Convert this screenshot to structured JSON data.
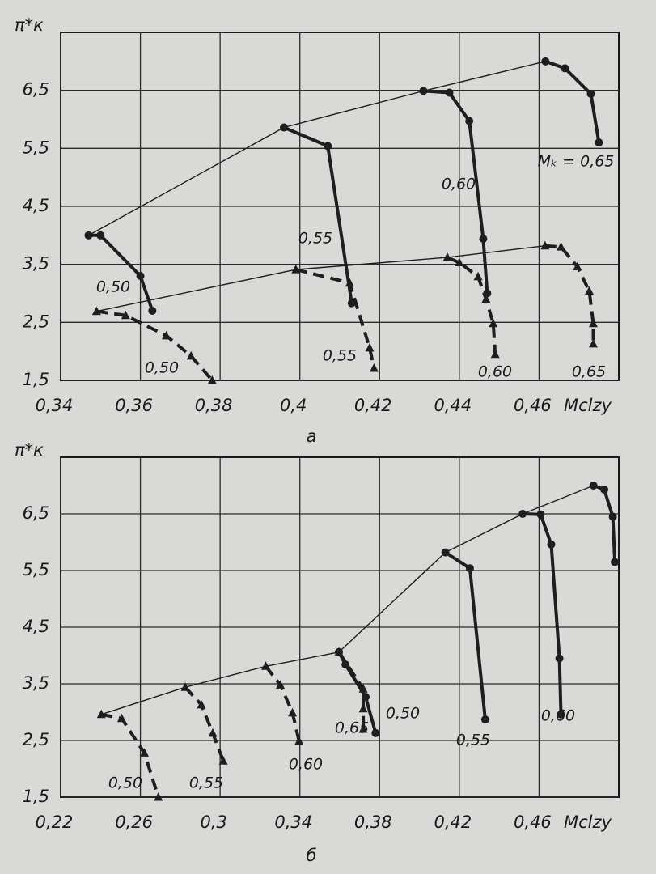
{
  "chart_data": [
    {
      "type": "line",
      "caption": "a",
      "y_label": "π*к",
      "x_label": "Mclzy",
      "color": "#1e1e1e",
      "grid": true,
      "xlim": [
        0.34,
        0.48
      ],
      "ylim": [
        1.5,
        7.5
      ],
      "xticks": [
        {
          "value": 0.34,
          "label": "0,34"
        },
        {
          "value": 0.36,
          "label": "0,36"
        },
        {
          "value": 0.38,
          "label": "0,38"
        },
        {
          "value": 0.4,
          "label": "0,4"
        },
        {
          "value": 0.42,
          "label": "0,42"
        },
        {
          "value": 0.44,
          "label": "0,44"
        },
        {
          "value": 0.46,
          "label": "0,46"
        }
      ],
      "yticks": [
        {
          "value": 1.5,
          "label": "1,5"
        },
        {
          "value": 2.5,
          "label": "2,5"
        },
        {
          "value": 3.5,
          "label": "3,5"
        },
        {
          "value": 4.5,
          "label": "4,5"
        },
        {
          "value": 5.5,
          "label": "5,5"
        },
        {
          "value": 6.5,
          "label": "6,5"
        }
      ],
      "series": [
        {
          "style": "thin",
          "x": [
            0.347,
            0.396,
            0.431,
            0.4616
          ],
          "values": [
            4.0,
            5.86,
            6.49,
            7.0
          ]
        },
        {
          "style": "thin",
          "x": [
            0.349,
            0.399,
            0.437,
            0.4615
          ],
          "values": [
            2.69,
            3.41,
            3.62,
            3.82
          ]
        },
        {
          "name": "0,50",
          "style": "solid",
          "x": [
            0.347,
            0.35,
            0.36,
            0.363
          ],
          "values": [
            4.0,
            4.0,
            3.3,
            2.7
          ]
        },
        {
          "name": "0,55",
          "style": "solid",
          "x": [
            0.396,
            0.407,
            0.413
          ],
          "values": [
            5.86,
            5.54,
            2.83
          ]
        },
        {
          "name": "0,60",
          "style": "solid",
          "x": [
            0.431,
            0.4375,
            0.4425,
            0.446,
            0.447
          ],
          "values": [
            6.49,
            6.46,
            5.97,
            3.94,
            3.0
          ]
        },
        {
          "name": "Mₖ = 0,65",
          "style": "solid",
          "x": [
            0.4616,
            0.4665,
            0.473,
            0.475
          ],
          "values": [
            7.0,
            6.88,
            6.44,
            5.6
          ]
        },
        {
          "name": "0,50",
          "style": "dashed",
          "x": [
            0.349,
            0.3563,
            0.3665,
            0.3727,
            0.378
          ],
          "values": [
            2.69,
            2.62,
            2.27,
            1.92,
            1.5
          ]
        },
        {
          "name": "0,55",
          "style": "dashed",
          "x": [
            0.399,
            0.4125,
            0.4175,
            0.4186
          ],
          "values": [
            3.41,
            3.18,
            2.06,
            1.71
          ]
        },
        {
          "name": "0,60",
          "style": "dashed",
          "x": [
            0.437,
            0.44,
            0.4447,
            0.4467,
            0.4485,
            0.449
          ],
          "values": [
            3.62,
            3.53,
            3.29,
            2.9,
            2.48,
            1.95
          ]
        },
        {
          "name": "0,65",
          "style": "dashed",
          "x": [
            0.4615,
            0.4655,
            0.4696,
            0.4726,
            0.4736,
            0.4736
          ],
          "values": [
            3.82,
            3.8,
            3.46,
            3.04,
            2.48,
            2.13
          ]
        }
      ]
    },
    {
      "type": "line",
      "caption": "б",
      "y_label": "π*к",
      "x_label": "Mclzy",
      "color": "#1e1e1e",
      "grid": true,
      "xlim": [
        0.22,
        0.5
      ],
      "ylim": [
        1.5,
        7.5
      ],
      "xticks": [
        {
          "value": 0.22,
          "label": "0,22"
        },
        {
          "value": 0.26,
          "label": "0,26"
        },
        {
          "value": 0.3,
          "label": "0,3"
        },
        {
          "value": 0.34,
          "label": "0,34"
        },
        {
          "value": 0.38,
          "label": "0,38"
        },
        {
          "value": 0.42,
          "label": "0,42"
        },
        {
          "value": 0.46,
          "label": "0,46"
        }
      ],
      "yticks": [
        {
          "value": 1.5,
          "label": "1,5"
        },
        {
          "value": 2.5,
          "label": "2,5"
        },
        {
          "value": 3.5,
          "label": "3,5"
        },
        {
          "value": 4.5,
          "label": "4,5"
        },
        {
          "value": 5.5,
          "label": "5,5"
        },
        {
          "value": 6.5,
          "label": "6,5"
        }
      ],
      "series": [
        {
          "style": "thin",
          "x": [
            0.3596,
            0.413,
            0.4518,
            0.4873
          ],
          "values": [
            4.06,
            5.82,
            6.5,
            7.0
          ]
        },
        {
          "style": "thin",
          "x": [
            0.2404,
            0.2825,
            0.3229,
            0.3596
          ],
          "values": [
            2.96,
            3.44,
            3.81,
            4.06
          ]
        },
        {
          "name": "0,50",
          "style": "solid",
          "x": [
            0.3596,
            0.3629,
            0.373,
            0.378
          ],
          "values": [
            4.06,
            3.84,
            3.27,
            2.63
          ]
        },
        {
          "name": "0,55",
          "style": "solid",
          "x": [
            0.413,
            0.4253,
            0.433
          ],
          "values": [
            5.82,
            5.54,
            2.87
          ]
        },
        {
          "name": "0,60",
          "style": "solid",
          "x": [
            0.4518,
            0.4608,
            0.4661,
            0.4702,
            0.471
          ],
          "values": [
            6.5,
            6.49,
            5.96,
            3.95,
            2.96
          ]
        },
        {
          "style": "solid",
          "x": [
            0.4873,
            0.4927,
            0.497,
            0.498
          ],
          "values": [
            7.0,
            6.93,
            6.45,
            5.65
          ]
        },
        {
          "name": "0,50",
          "style": "dashed",
          "x": [
            0.2404,
            0.2506,
            0.262,
            0.269
          ],
          "values": [
            2.96,
            2.89,
            2.28,
            1.5
          ]
        },
        {
          "name": "0,55",
          "style": "dashed",
          "x": [
            0.2825,
            0.2906,
            0.2963,
            0.3016
          ],
          "values": [
            3.44,
            3.13,
            2.63,
            2.14
          ]
        },
        {
          "name": "0,60",
          "style": "dashed",
          "x": [
            0.3229,
            0.3302,
            0.3363,
            0.3396
          ],
          "values": [
            3.81,
            3.48,
            2.99,
            2.49
          ]
        },
        {
          "name": "0,65",
          "style": "dashed",
          "x": [
            0.3596,
            0.3718,
            0.3718,
            0.3718
          ],
          "values": [
            4.06,
            3.41,
            3.06,
            2.7
          ]
        }
      ]
    }
  ]
}
